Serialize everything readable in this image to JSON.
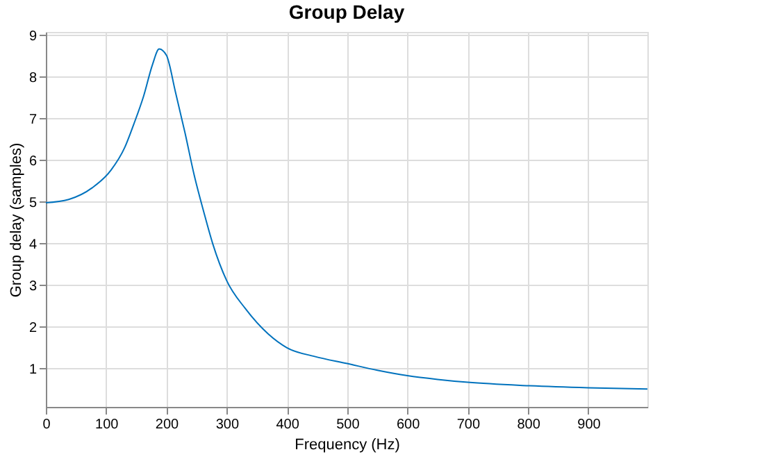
{
  "chart_data": {
    "type": "line",
    "title": "Group Delay",
    "xlabel": "Frequency (Hz)",
    "ylabel": "Group delay (samples)",
    "x": [
      0,
      38,
      77,
      108,
      131,
      146,
      162,
      177,
      188,
      200,
      215,
      231,
      246,
      262,
      277,
      300,
      331,
      369,
      400,
      446,
      500,
      550,
      600,
      650,
      700,
      800,
      900,
      998
    ],
    "series": [
      {
        "color": "#0072bd",
        "values": [
          4.98,
          5.06,
          5.34,
          5.76,
          6.31,
          6.87,
          7.53,
          8.3,
          8.67,
          8.52,
          7.64,
          6.65,
          5.65,
          4.76,
          3.99,
          3.11,
          2.44,
          1.83,
          1.5,
          1.29,
          1.12,
          0.96,
          0.83,
          0.74,
          0.67,
          0.59,
          0.54,
          0.51
        ]
      }
    ],
    "xlim": [
      0,
      998
    ],
    "xticks": [
      0,
      100,
      200,
      300,
      400,
      500,
      600,
      700,
      800,
      900
    ],
    "ylim": [
      0.08,
      9.08
    ],
    "yticks": [
      1,
      2,
      3,
      4,
      5,
      6,
      7,
      8,
      9
    ],
    "grid": true,
    "marker": "none",
    "line_style": "solid"
  }
}
